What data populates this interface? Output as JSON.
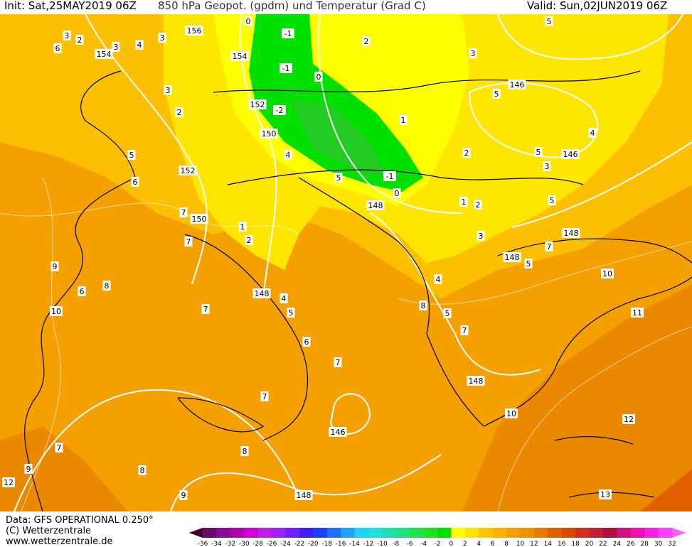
{
  "header": {
    "init": "Init: Sat,25MAY2019 06Z",
    "field": "850 hPa Geopot. (gpdm) und Temperatur (Grad C)",
    "valid": "Valid: Sun,02JUN2019 06Z"
  },
  "footer": {
    "data": "Data: GFS OPERATIONAL 0.250°",
    "copyright": "(C) Wetterzentrale",
    "url": "www.wetterzentrale.de"
  },
  "colorbar": {
    "ticks": [
      -36,
      -34,
      -32,
      -30,
      -28,
      -26,
      -24,
      -22,
      -20,
      -18,
      -16,
      -14,
      -12,
      -10,
      -8,
      -6,
      -4,
      -2,
      0,
      2,
      4,
      6,
      8,
      10,
      12,
      14,
      16,
      18,
      20,
      22,
      24,
      26,
      28,
      30,
      32
    ],
    "colors": [
      "#40002a",
      "#6a0a6a",
      "#8a0a9a",
      "#b000b0",
      "#d000d0",
      "#c020e0",
      "#a020ff",
      "#7020ff",
      "#4020f0",
      "#2040ff",
      "#2070ff",
      "#20a0ff",
      "#20d0ff",
      "#20e0e0",
      "#20e0b0",
      "#20e080",
      "#20e050",
      "#20e020",
      "#00e000",
      "#ffff00",
      "#ffe000",
      "#ffc800",
      "#ffb000",
      "#f5a000",
      "#f09000",
      "#e87800",
      "#e06000",
      "#d84800",
      "#d03020",
      "#c02030",
      "#b01040",
      "#d01080",
      "#f010b0",
      "#ff20e0",
      "#ff40ff",
      "#ff60ff"
    ]
  },
  "map_labels": [
    0,
    -1,
    -1,
    0,
    -2,
    152,
    150,
    154,
    156,
    154,
    152,
    150,
    148,
    148,
    148,
    148,
    148,
    146,
    146,
    146,
    148,
    -1,
    0,
    2,
    3,
    5,
    5,
    4,
    5,
    3,
    5,
    1,
    2,
    1,
    2,
    3,
    4,
    5,
    7,
    8,
    10,
    11,
    12,
    13,
    10,
    7,
    5,
    4,
    5,
    1,
    2,
    4,
    5,
    6,
    7,
    7,
    8,
    7,
    7,
    7,
    6,
    5,
    8,
    9,
    6,
    10,
    7,
    9,
    12,
    9,
    8,
    3,
    2,
    3,
    4,
    3,
    2,
    3,
    6
  ]
}
